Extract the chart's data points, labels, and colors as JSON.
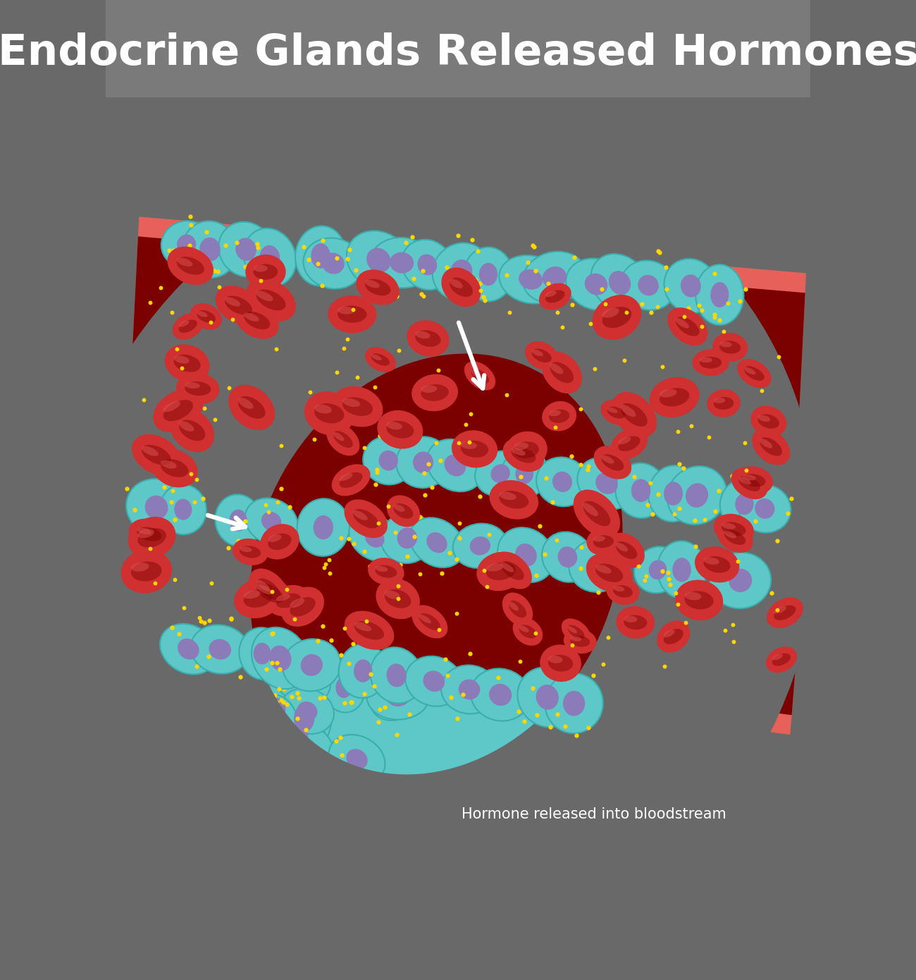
{
  "title": "Endocrine Glands Released Hormones",
  "subtitle": "Hormone released into bloodstream",
  "bg_color": "#696969",
  "title_bg_color": "#7a7a7a",
  "title_color": "#ffffff",
  "title_fontsize": 44,
  "subtitle_fontsize": 15,
  "vessel_dark": "#7B0000",
  "vessel_mid": "#A01010",
  "vessel_wall": "#E8605A",
  "cell_bg": "#5EC8C8",
  "cell_border": "#4AADAD",
  "nucleus_color": "#8B7BB8",
  "rbc_bright": "#D03030",
  "rbc_mid": "#B02020",
  "rbc_dark": "#7B0000",
  "hormone_color": "#FFD700",
  "arrow_color": "#ffffff"
}
